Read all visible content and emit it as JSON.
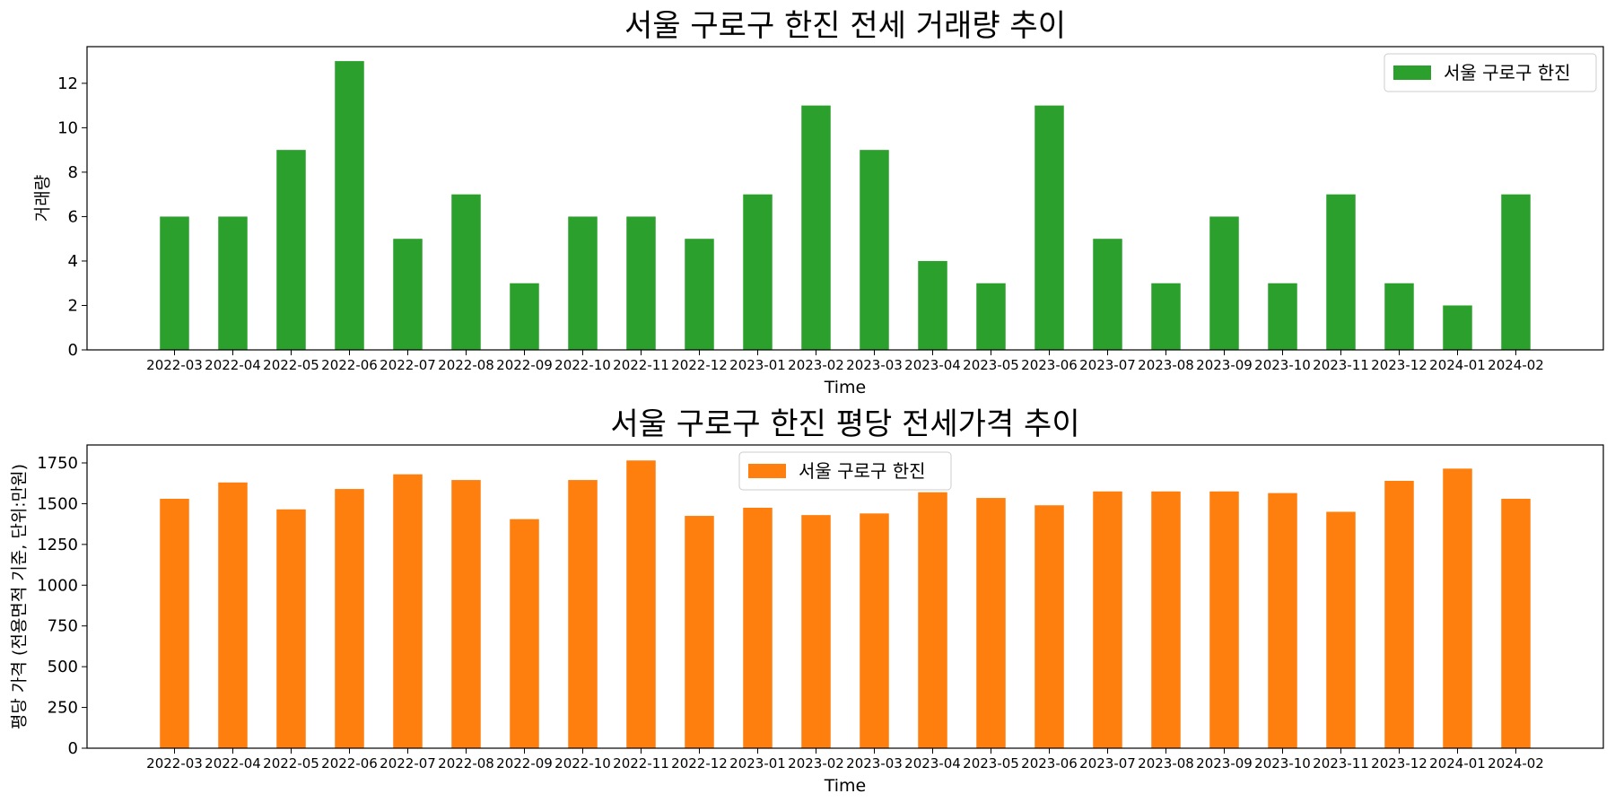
{
  "chart_data": [
    {
      "type": "bar",
      "title": "서울 구로구 한진 전세 거래량 추이",
      "xlabel": "Time",
      "ylabel": "거래량",
      "ylim": [
        0,
        13.65
      ],
      "yticks": [
        0,
        2,
        4,
        6,
        8,
        10,
        12
      ],
      "legend_position": "upper right",
      "categories": [
        "2022-03",
        "2022-04",
        "2022-05",
        "2022-06",
        "2022-07",
        "2022-08",
        "2022-09",
        "2022-10",
        "2022-11",
        "2022-12",
        "2023-01",
        "2023-02",
        "2023-03",
        "2023-04",
        "2023-05",
        "2023-06",
        "2023-07",
        "2023-08",
        "2023-09",
        "2023-10",
        "2023-11",
        "2023-12",
        "2024-01",
        "2024-02"
      ],
      "series": [
        {
          "name": "서울 구로구 한진",
          "color": "#2ca02c",
          "values": [
            6,
            6,
            9,
            13,
            5,
            7,
            3,
            6,
            6,
            5,
            7,
            11,
            9,
            4,
            3,
            11,
            5,
            3,
            6,
            3,
            7,
            3,
            2,
            7
          ]
        }
      ]
    },
    {
      "type": "bar",
      "title": "서울 구로구 한진 평당 전세가격 추이",
      "xlabel": "Time",
      "ylabel": "평당 가격 (전용면적 기준, 단위:만원)",
      "ylim": [
        0,
        1860
      ],
      "yticks": [
        0,
        250,
        500,
        750,
        1000,
        1250,
        1500,
        1750
      ],
      "legend_position": "upper center",
      "categories": [
        "2022-03",
        "2022-04",
        "2022-05",
        "2022-06",
        "2022-07",
        "2022-08",
        "2022-09",
        "2022-10",
        "2022-11",
        "2022-12",
        "2023-01",
        "2023-02",
        "2023-03",
        "2023-04",
        "2023-05",
        "2023-06",
        "2023-07",
        "2023-08",
        "2023-09",
        "2023-10",
        "2023-11",
        "2023-12",
        "2024-01",
        "2024-02"
      ],
      "series": [
        {
          "name": "서울 구로구 한진",
          "color": "#ff7f0e",
          "values": [
            1530,
            1630,
            1465,
            1590,
            1680,
            1645,
            1405,
            1645,
            1765,
            1425,
            1475,
            1430,
            1440,
            1570,
            1535,
            1490,
            1575,
            1575,
            1575,
            1565,
            1450,
            1640,
            1715,
            1530
          ]
        }
      ]
    }
  ]
}
